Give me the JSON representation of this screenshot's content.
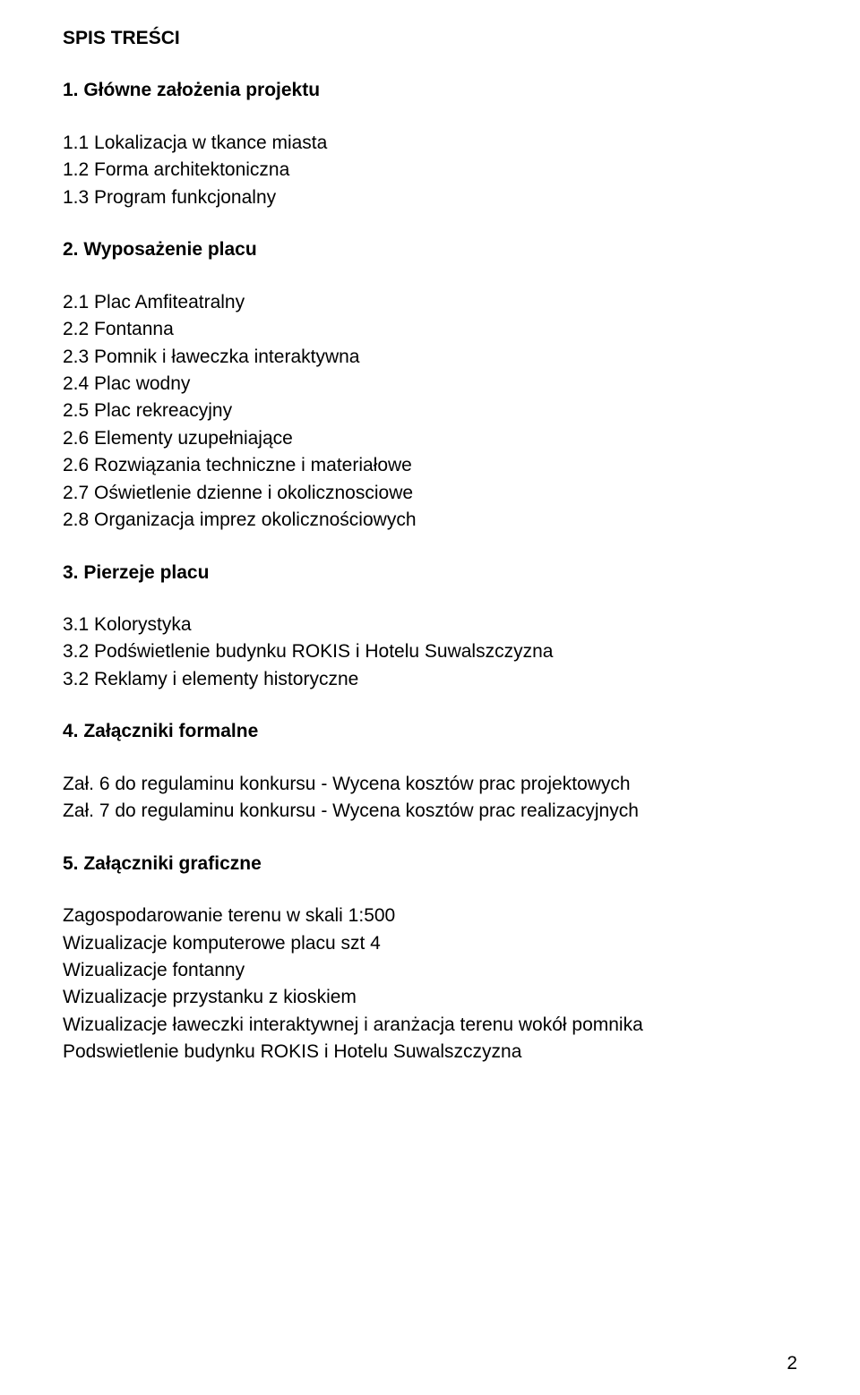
{
  "title": "SPIS TREŚCI",
  "s1": {
    "head": "1. Główne założenia projektu",
    "items": [
      "1.1 Lokalizacja w tkance miasta",
      "1.2 Forma architektoniczna",
      "1.3 Program funkcjonalny"
    ]
  },
  "s2": {
    "head": "2. Wyposażenie placu",
    "items": [
      "2.1 Plac Amfiteatralny",
      "2.2 Fontanna",
      "2.3 Pomnik i ławeczka interaktywna",
      "2.4 Plac wodny",
      "2.5 Plac rekreacyjny",
      "2.6 Elementy uzupełniające",
      "2.6 Rozwiązania techniczne i materiałowe",
      "2.7 Oświetlenie dzienne i okolicznosciowe",
      "2.8 Organizacja imprez okolicznościowych"
    ]
  },
  "s3": {
    "head": "3. Pierzeje placu",
    "items": [
      "3.1 Kolorystyka",
      "3.2 Podświetlenie budynku ROKIS i Hotelu Suwalszczyzna",
      "3.2 Reklamy i elementy historyczne"
    ]
  },
  "s4": {
    "head": "4. Załączniki formalne",
    "items": [
      "Zał. 6 do regulaminu konkursu - Wycena kosztów prac projektowych",
      "Zał. 7 do regulaminu konkursu - Wycena kosztów prac realizacyjnych"
    ]
  },
  "s5": {
    "head": "5. Załączniki graficzne",
    "items": [
      "Zagospodarowanie terenu w skali 1:500",
      "Wizualizacje komputerowe placu szt 4",
      "Wizualizacje fontanny",
      "Wizualizacje przystanku z kioskiem",
      "Wizualizacje ławeczki interaktywnej i aranżacja terenu wokół pomnika",
      "Podswietlenie budynku ROKIS i Hotelu Suwalszczyzna"
    ]
  },
  "pageNumber": "2"
}
